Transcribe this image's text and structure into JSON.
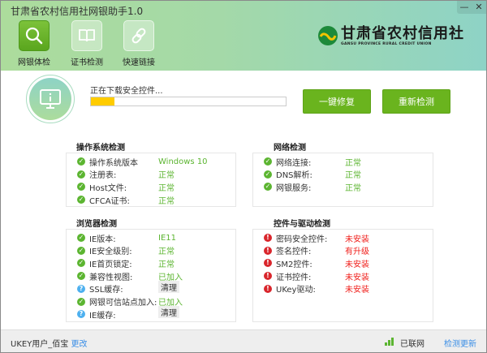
{
  "window": {
    "title": "甘肃省农村信用社网银助手1.0",
    "minimize": "—",
    "close": "✕"
  },
  "nav": [
    {
      "label": "网银体检",
      "icon": "magnifier-icon",
      "active": true
    },
    {
      "label": "证书检测",
      "icon": "book-icon"
    },
    {
      "label": "快速链接",
      "icon": "link-icon"
    }
  ],
  "logo": {
    "name": "甘肃省农村信用社",
    "english": "GANSU PROVINCE RURAL CREDIT UNION"
  },
  "progress": {
    "text": "正在下载安全控件...",
    "percent": 12
  },
  "buttons": {
    "repair": "一键修复",
    "recheck": "重新检测"
  },
  "sections": {
    "os": {
      "title": "操作系统检测",
      "rows": [
        {
          "label": "操作系统版本",
          "value": "Windows 10",
          "status": "ok"
        },
        {
          "label": "注册表:",
          "value": "正常",
          "status": "ok"
        },
        {
          "label": "Host文件:",
          "value": "正常",
          "status": "ok"
        },
        {
          "label": "CFCA证书:",
          "value": "正常",
          "status": "ok"
        }
      ]
    },
    "network": {
      "title": "网络检测",
      "rows": [
        {
          "label": "网络连接:",
          "value": "正常",
          "status": "ok"
        },
        {
          "label": "DNS解析:",
          "value": "正常",
          "status": "ok"
        },
        {
          "label": "网银服务:",
          "value": "正常",
          "status": "ok"
        }
      ]
    },
    "browser": {
      "title": "浏览器检测",
      "rows": [
        {
          "label": "IE版本:",
          "value": "IE11",
          "status": "ok"
        },
        {
          "label": "IE安全级别:",
          "value": "正常",
          "status": "ok"
        },
        {
          "label": "IE首页锁定:",
          "value": "正常",
          "status": "ok"
        },
        {
          "label": "兼容性视图:",
          "value": "已加入",
          "status": "ok"
        },
        {
          "label": "SSL缓存:",
          "value": "清理",
          "status": "question"
        },
        {
          "label": "网银可信站点加入:",
          "value": "已加入",
          "status": "ok"
        },
        {
          "label": "IE缓存:",
          "value": "清理",
          "status": "question"
        }
      ]
    },
    "controls": {
      "title": "控件与驱动检测",
      "rows": [
        {
          "label": "密码安全控件:",
          "value": "未安装",
          "status": "error"
        },
        {
          "label": "签名控件:",
          "value": "有升级",
          "status": "error"
        },
        {
          "label": "SM2控件:",
          "value": "未安装",
          "status": "error"
        },
        {
          "label": "证书控件:",
          "value": "未安装",
          "status": "error"
        },
        {
          "label": "UKey驱动:",
          "value": "未安装",
          "status": "error"
        }
      ]
    }
  },
  "footer": {
    "user": "UKEY用户_佰宝",
    "change": "更改",
    "network_status": "已联网",
    "check_update": "检测更新"
  },
  "colors": {
    "accent": "#6ab41e",
    "ok": "#5cb531",
    "error": "#f0201c",
    "progress": "#ffcc00",
    "link": "#3a8ee6"
  }
}
